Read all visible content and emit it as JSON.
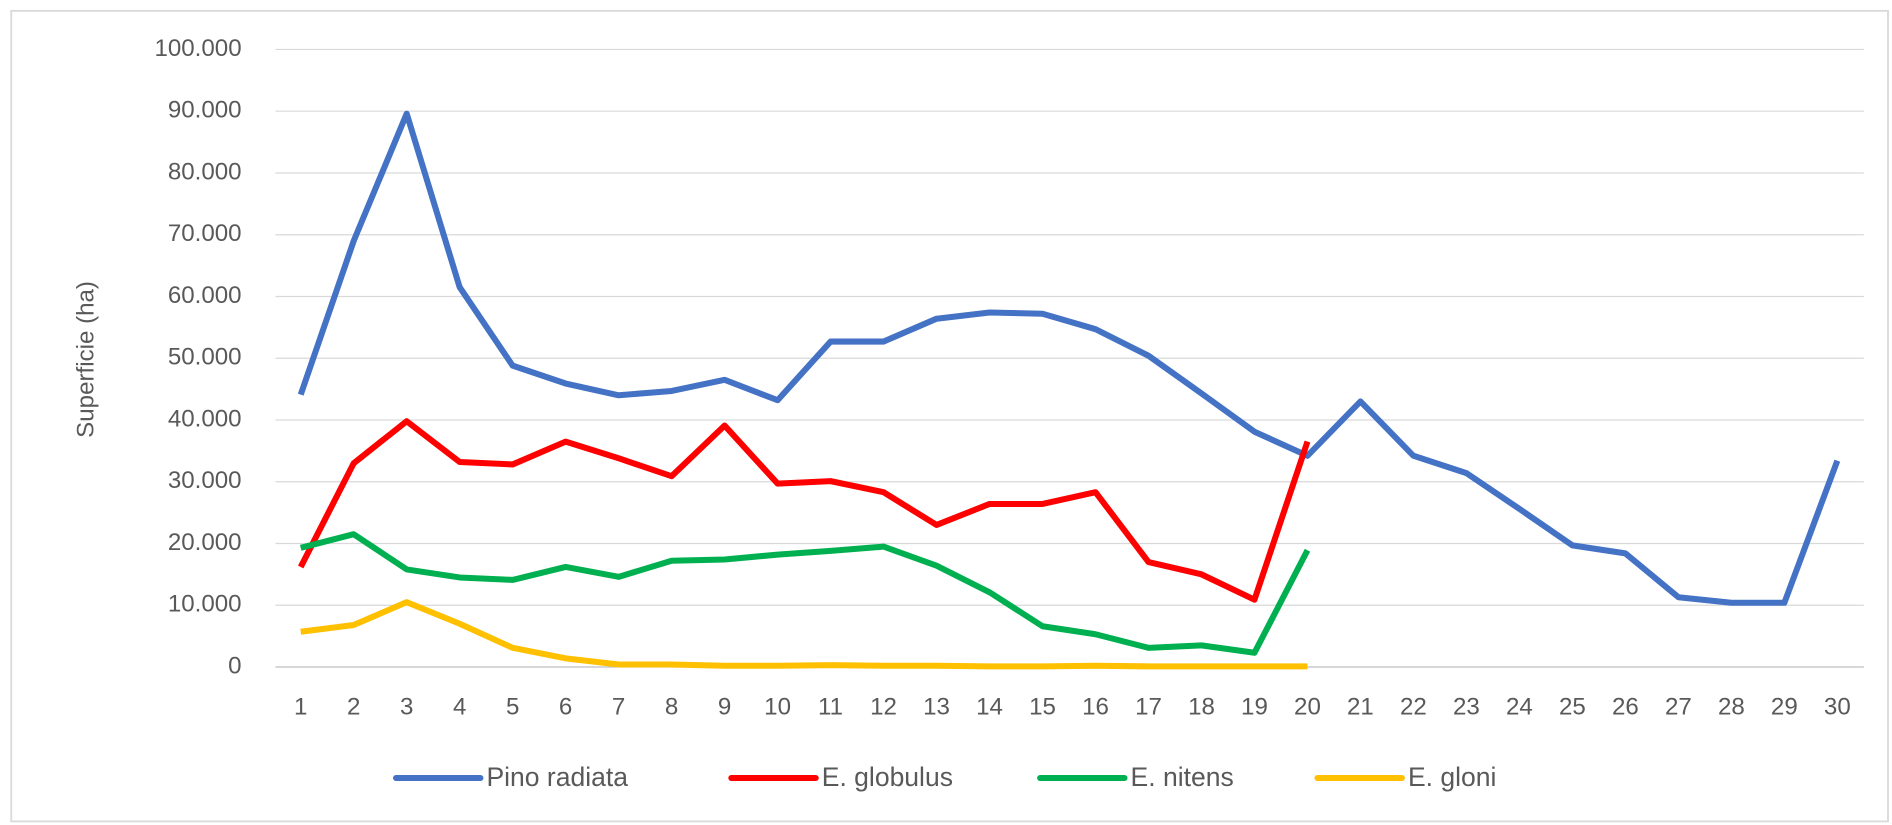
{
  "chart_data": {
    "type": "line",
    "y_label": "Superficie (ha)",
    "categories": [
      1,
      2,
      3,
      4,
      5,
      6,
      7,
      8,
      9,
      10,
      11,
      12,
      13,
      14,
      15,
      16,
      17,
      18,
      19,
      20,
      21,
      22,
      23,
      24,
      25,
      26,
      27,
      28,
      29,
      30
    ],
    "ylim": [
      0,
      100000
    ],
    "yticks": [
      0,
      {
        "value": 10000,
        "label": "10.000"
      },
      {
        "value": 20000,
        "label": "20.000"
      },
      {
        "value": 30000,
        "label": "30.000"
      },
      {
        "value": 40000,
        "label": "40.000"
      },
      {
        "value": 50000,
        "label": "50.000"
      },
      {
        "value": 60000,
        "label": "60.000"
      },
      {
        "value": 70000,
        "label": "70.000"
      },
      {
        "value": 80000,
        "label": "80.000"
      },
      {
        "value": 90000,
        "label": "90.000"
      },
      {
        "value": 100000,
        "label": "100.000"
      }
    ],
    "grid": true,
    "legend": "bottom",
    "series": [
      {
        "name": "Pino radiata",
        "color": "#4472c4",
        "values": [
          44100,
          69000,
          89600,
          61500,
          48800,
          45900,
          44000,
          44700,
          46500,
          43200,
          52700,
          52700,
          56400,
          57400,
          57200,
          54700,
          50400,
          44300,
          38100,
          34200,
          43000,
          34200,
          31400,
          25600,
          19700,
          18400,
          11300,
          10400,
          10400,
          33400
        ]
      },
      {
        "name": "E. globulus",
        "color": "#ff0000",
        "values": [
          16200,
          33000,
          39800,
          33200,
          32800,
          36500,
          33800,
          30900,
          39100,
          29700,
          30100,
          28300,
          23000,
          26400,
          26400,
          28300,
          17000,
          15000,
          10900,
          36500,
          null,
          null,
          null,
          null,
          null,
          null,
          null,
          null,
          null,
          null
        ]
      },
      {
        "name": "E. nitens",
        "color": "#00b050",
        "values": [
          19300,
          21500,
          15800,
          14500,
          14100,
          16200,
          14600,
          17200,
          17400,
          18200,
          18800,
          19500,
          16400,
          12100,
          6600,
          5300,
          3100,
          3500,
          2300,
          18900,
          null,
          null,
          null,
          null,
          null,
          null,
          null,
          null,
          null,
          null
        ]
      },
      {
        "name": "E. gloni",
        "color": "#ffc000",
        "values": [
          5700,
          6800,
          10500,
          7000,
          3100,
          1400,
          400,
          400,
          200,
          200,
          300,
          200,
          200,
          100,
          100,
          200,
          100,
          100,
          100,
          100,
          null,
          null,
          null,
          null,
          null,
          null,
          null,
          null,
          null,
          null
        ]
      }
    ]
  }
}
